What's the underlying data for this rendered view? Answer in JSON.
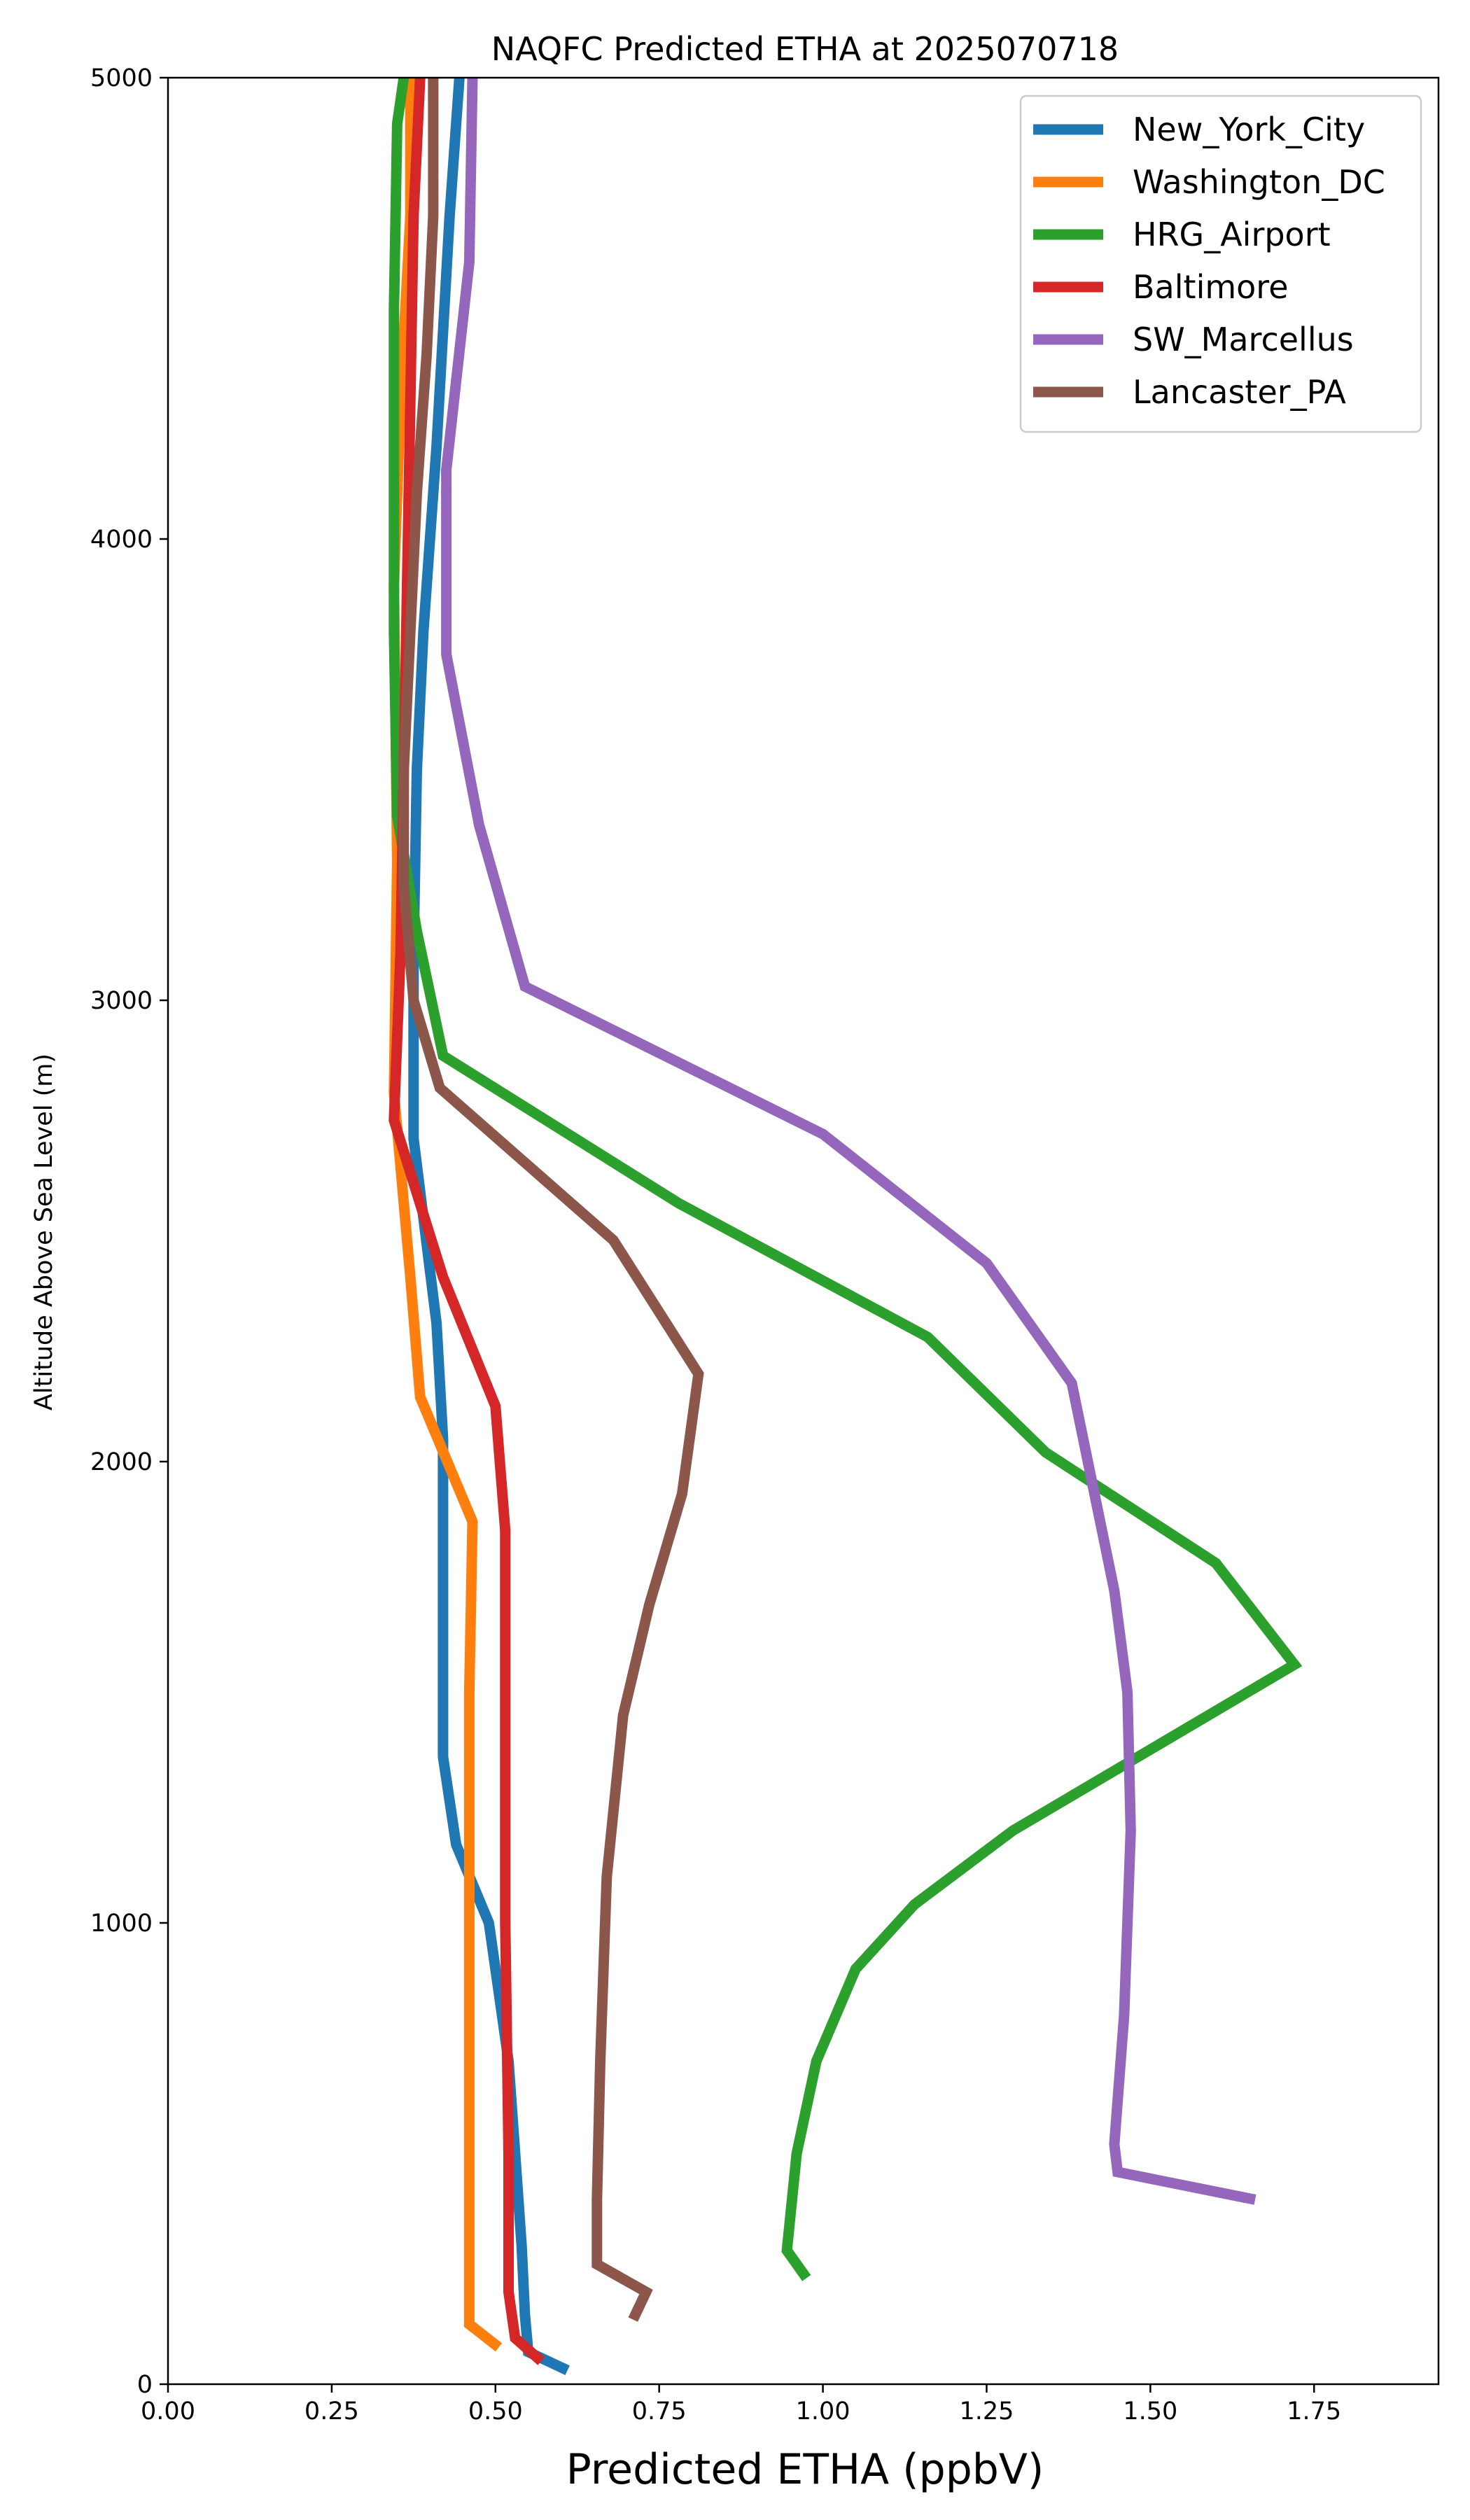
{
  "chart_data": {
    "type": "line",
    "title": "NAQFC Predicted ETHA at 2025070718",
    "xlabel": "Predicted ETHA (ppbV)",
    "ylabel": "Altitude Above Sea Level (m)",
    "xlim": [
      0,
      1.94
    ],
    "ylim": [
      0,
      5000
    ],
    "xticks": [
      "0.00",
      "0.25",
      "0.50",
      "0.75",
      "1.00",
      "1.25",
      "1.50",
      "1.75"
    ],
    "yticks": [
      "0",
      "1000",
      "2000",
      "3000",
      "4000",
      "5000"
    ],
    "legend_position": "top-right",
    "grid": false,
    "series": [
      {
        "name": "New_York_City",
        "color": "#1f77b4",
        "points": [
          [
            0.61,
            30
          ],
          [
            0.55,
            70
          ],
          [
            0.545,
            150
          ],
          [
            0.54,
            300
          ],
          [
            0.53,
            500
          ],
          [
            0.52,
            700
          ],
          [
            0.49,
            1000
          ],
          [
            0.44,
            1170
          ],
          [
            0.42,
            1360
          ],
          [
            0.42,
            1700
          ],
          [
            0.42,
            2050
          ],
          [
            0.41,
            2300
          ],
          [
            0.375,
            2700
          ],
          [
            0.375,
            3100
          ],
          [
            0.38,
            3500
          ],
          [
            0.39,
            3800
          ],
          [
            0.41,
            4200
          ],
          [
            0.43,
            4700
          ],
          [
            0.445,
            5000
          ]
        ]
      },
      {
        "name": "Washington_DC",
        "color": "#ff7f0e",
        "points": [
          [
            0.505,
            80
          ],
          [
            0.46,
            130
          ],
          [
            0.46,
            500
          ],
          [
            0.46,
            1000
          ],
          [
            0.46,
            1500
          ],
          [
            0.465,
            1870
          ],
          [
            0.385,
            2140
          ],
          [
            0.37,
            2400
          ],
          [
            0.345,
            2800
          ],
          [
            0.35,
            3300
          ],
          [
            0.345,
            3900
          ],
          [
            0.355,
            4300
          ],
          [
            0.37,
            4700
          ],
          [
            0.37,
            5000
          ]
        ]
      },
      {
        "name": "HRG_Airport",
        "color": "#2ca02c",
        "points": [
          [
            0.975,
            230
          ],
          [
            0.945,
            290
          ],
          [
            0.96,
            500
          ],
          [
            0.99,
            700
          ],
          [
            1.05,
            900
          ],
          [
            1.14,
            1040
          ],
          [
            1.29,
            1200
          ],
          [
            1.72,
            1560
          ],
          [
            1.6,
            1780
          ],
          [
            1.34,
            2020
          ],
          [
            1.16,
            2270
          ],
          [
            0.78,
            2560
          ],
          [
            0.42,
            2880
          ],
          [
            0.38,
            3150
          ],
          [
            0.35,
            3400
          ],
          [
            0.345,
            3800
          ],
          [
            0.345,
            4200
          ],
          [
            0.345,
            4500
          ],
          [
            0.35,
            4900
          ],
          [
            0.36,
            5000
          ]
        ]
      },
      {
        "name": "Baltimore",
        "color": "#d62728",
        "points": [
          [
            0.57,
            50
          ],
          [
            0.53,
            100
          ],
          [
            0.52,
            200
          ],
          [
            0.52,
            500
          ],
          [
            0.515,
            1000
          ],
          [
            0.515,
            1500
          ],
          [
            0.515,
            1850
          ],
          [
            0.5,
            2120
          ],
          [
            0.42,
            2400
          ],
          [
            0.345,
            2740
          ],
          [
            0.355,
            3100
          ],
          [
            0.36,
            3500
          ],
          [
            0.365,
            3900
          ],
          [
            0.37,
            4300
          ],
          [
            0.375,
            4700
          ],
          [
            0.385,
            5000
          ]
        ]
      },
      {
        "name": "SW_Marcellus",
        "color": "#9467bd",
        "points": [
          [
            1.66,
            400
          ],
          [
            1.45,
            460
          ],
          [
            1.445,
            520
          ],
          [
            1.46,
            800
          ],
          [
            1.47,
            1200
          ],
          [
            1.465,
            1500
          ],
          [
            1.445,
            1720
          ],
          [
            1.38,
            2170
          ],
          [
            1.25,
            2430
          ],
          [
            1.0,
            2710
          ],
          [
            0.545,
            3030
          ],
          [
            0.475,
            3380
          ],
          [
            0.425,
            3750
          ],
          [
            0.425,
            4150
          ],
          [
            0.46,
            4600
          ],
          [
            0.465,
            5000
          ]
        ]
      },
      {
        "name": "Lancaster_PA",
        "color": "#8c564b",
        "points": [
          [
            0.71,
            140
          ],
          [
            0.73,
            200
          ],
          [
            0.655,
            260
          ],
          [
            0.655,
            400
          ],
          [
            0.66,
            700
          ],
          [
            0.67,
            1100
          ],
          [
            0.695,
            1450
          ],
          [
            0.735,
            1690
          ],
          [
            0.785,
            1930
          ],
          [
            0.81,
            2190
          ],
          [
            0.68,
            2480
          ],
          [
            0.415,
            2810
          ],
          [
            0.375,
            3000
          ],
          [
            0.36,
            3250
          ],
          [
            0.36,
            3500
          ],
          [
            0.37,
            3800
          ],
          [
            0.38,
            4100
          ],
          [
            0.395,
            4400
          ],
          [
            0.405,
            4700
          ],
          [
            0.405,
            5000
          ]
        ]
      }
    ]
  }
}
